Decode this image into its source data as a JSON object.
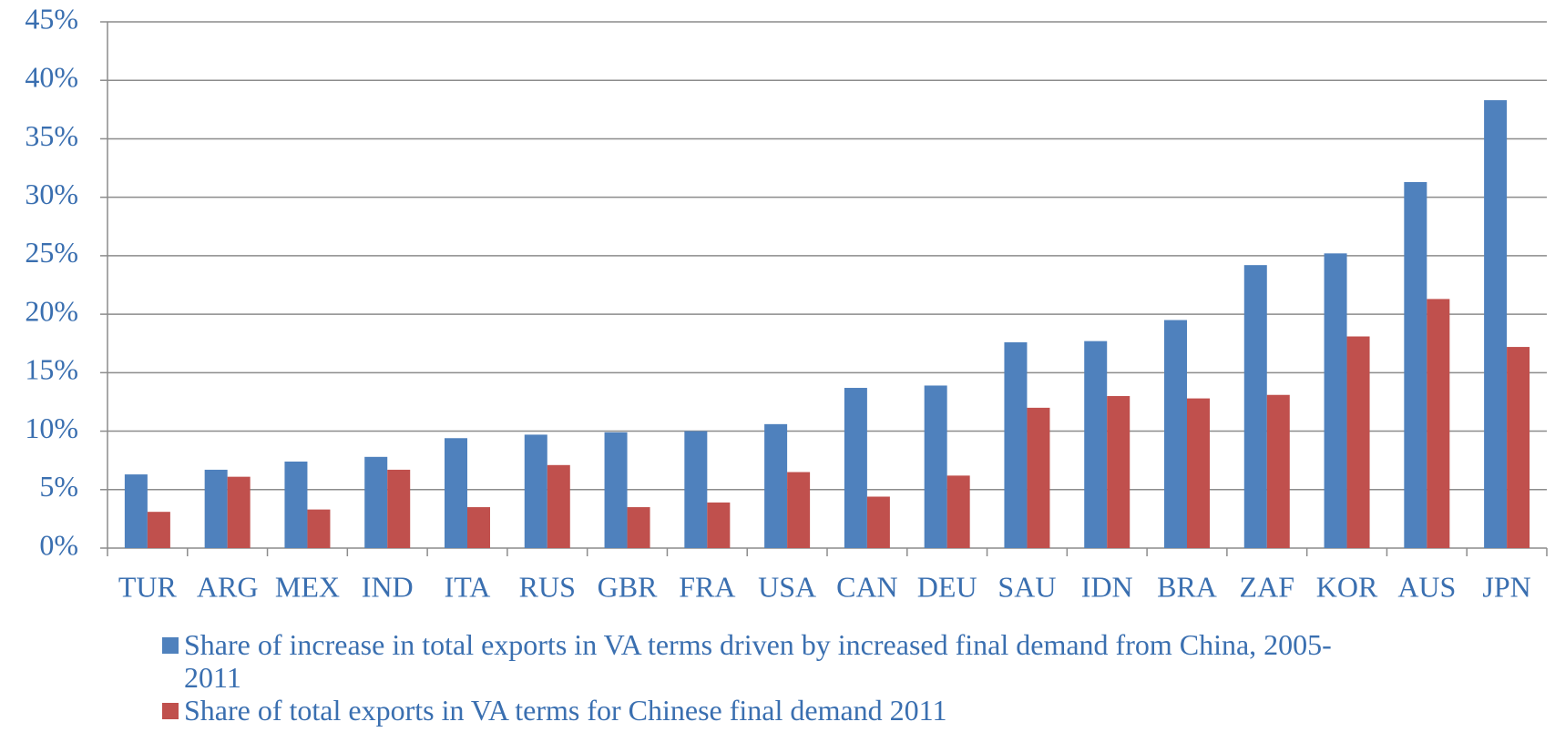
{
  "chart_data": {
    "type": "bar",
    "categories": [
      "TUR",
      "ARG",
      "MEX",
      "IND",
      "ITA",
      "RUS",
      "GBR",
      "FRA",
      "USA",
      "CAN",
      "DEU",
      "SAU",
      "IDN",
      "BRA",
      "ZAF",
      "KOR",
      "AUS",
      "JPN"
    ],
    "series": [
      {
        "name": "Share of increase in total exports in VA terms driven by increased final demand from China, 2005-2011",
        "color": "#4f81bd",
        "values": [
          6.3,
          6.7,
          7.4,
          7.8,
          9.4,
          9.7,
          9.9,
          10.0,
          10.6,
          13.7,
          13.9,
          17.6,
          17.7,
          19.5,
          24.2,
          25.2,
          31.3,
          38.3
        ]
      },
      {
        "name": "Share of total exports in VA terms for Chinese final demand 2011",
        "color": "#c0504d",
        "values": [
          3.1,
          6.1,
          3.3,
          6.7,
          3.5,
          7.1,
          3.5,
          3.9,
          6.5,
          4.4,
          6.2,
          12.0,
          13.0,
          12.8,
          13.1,
          18.1,
          21.3,
          17.2
        ]
      }
    ],
    "ylim": [
      0,
      45
    ],
    "yticks": [
      {
        "value": 0,
        "label": "0%"
      },
      {
        "value": 5,
        "label": "5%"
      },
      {
        "value": 10,
        "label": "10%"
      },
      {
        "value": 15,
        "label": "15%"
      },
      {
        "value": 20,
        "label": "20%"
      },
      {
        "value": 25,
        "label": "25%"
      },
      {
        "value": 30,
        "label": "30%"
      },
      {
        "value": 35,
        "label": "35%"
      },
      {
        "value": 40,
        "label": "40%"
      },
      {
        "value": 45,
        "label": "45%"
      }
    ],
    "grid": true,
    "legend": "bottom"
  }
}
